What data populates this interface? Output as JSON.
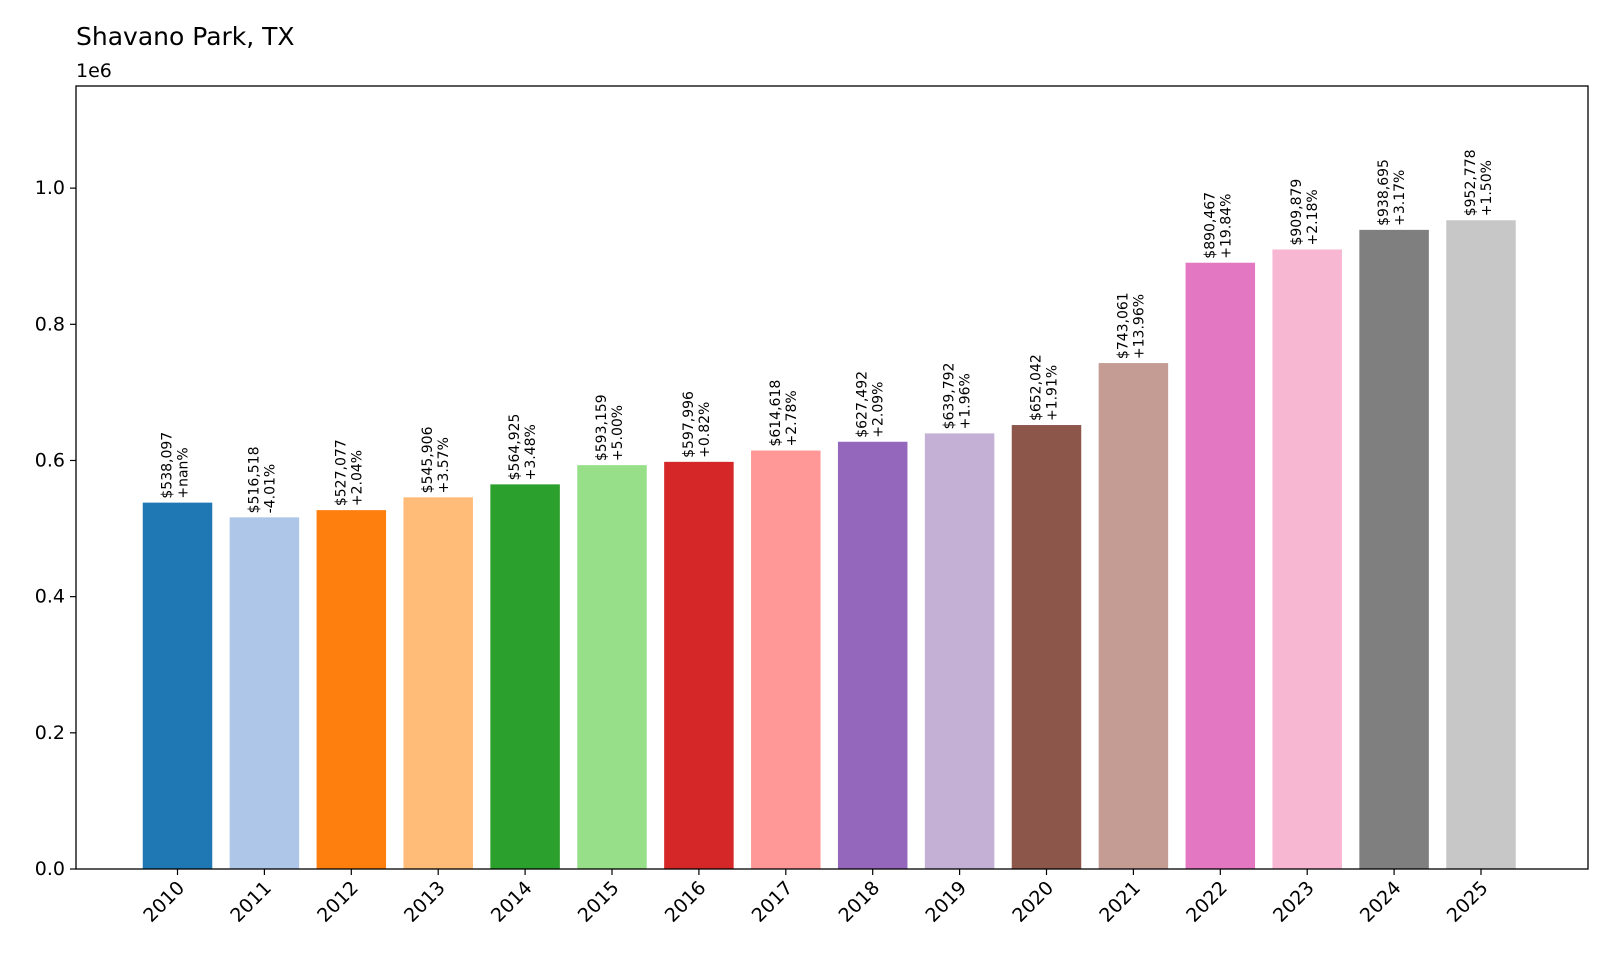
{
  "chart_data": {
    "type": "bar",
    "title": "Shavano Park, TX",
    "xlabel": "",
    "ylabel": "",
    "y_offset_label": "1e6",
    "ylim": [
      0,
      1150000
    ],
    "yticks": [
      0,
      200000,
      400000,
      600000,
      800000,
      1000000
    ],
    "ytick_labels": [
      "0.0",
      "0.2",
      "0.4",
      "0.6",
      "0.8",
      "1.0"
    ],
    "grid": false,
    "legend": "none",
    "categories": [
      "2010",
      "2011",
      "2012",
      "2013",
      "2014",
      "2015",
      "2016",
      "2017",
      "2018",
      "2019",
      "2020",
      "2021",
      "2022",
      "2023",
      "2024",
      "2025"
    ],
    "values": [
      538097,
      516518,
      527077,
      545906,
      564925,
      593159,
      597996,
      614618,
      627492,
      639792,
      652042,
      743061,
      890467,
      909879,
      938695,
      952778
    ],
    "value_labels": [
      "$538,097",
      "$516,518",
      "$527,077",
      "$545,906",
      "$564,925",
      "$593,159",
      "$597,996",
      "$614,618",
      "$627,492",
      "$639,792",
      "$652,042",
      "$743,061",
      "$890,467",
      "$909,879",
      "$938,695",
      "$952,778"
    ],
    "change_labels": [
      "+nan%",
      "-4.01%",
      "+2.04%",
      "+3.57%",
      "+3.48%",
      "+5.00%",
      "+0.82%",
      "+2.78%",
      "+2.09%",
      "+1.96%",
      "+1.91%",
      "+13.96%",
      "+19.84%",
      "+2.18%",
      "+3.17%",
      "+1.50%"
    ],
    "colors": [
      "#1f77b4",
      "#aec7e8",
      "#ff7f0e",
      "#ffbb78",
      "#2ca02c",
      "#98df8a",
      "#d62728",
      "#ff9896",
      "#9467bd",
      "#c5b0d5",
      "#8c564b",
      "#c49c94",
      "#e377c2",
      "#f7b6d2",
      "#7f7f7f",
      "#c7c7c7"
    ]
  }
}
